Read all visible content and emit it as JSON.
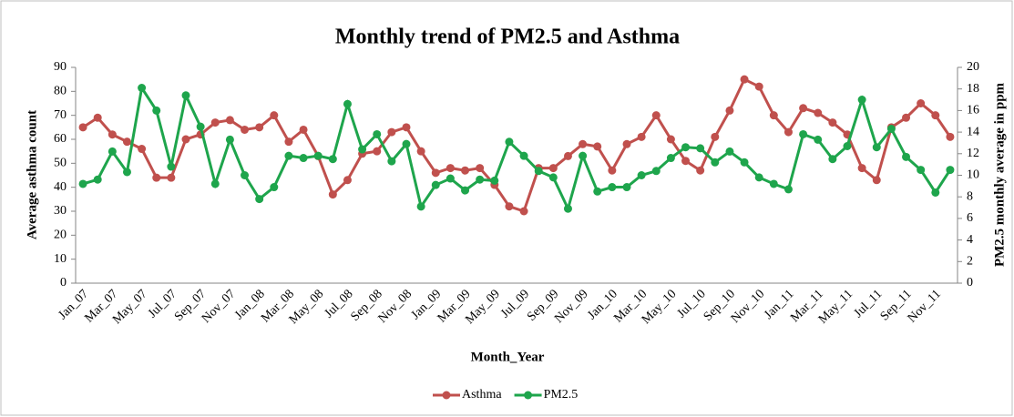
{
  "chart_data": {
    "type": "line",
    "title": "Monthly trend of PM2.5 and Asthma",
    "x_label": "Month_Year",
    "y_label": "Average asthma count",
    "y2_label": "PM2.5 monthly average in ppm",
    "categories": [
      "Jan_07",
      null,
      "Mar_07",
      null,
      "May_07",
      null,
      "Jul_07",
      null,
      "Sep_07",
      null,
      "Nov_07",
      null,
      "Jan_08",
      null,
      "Mar_08",
      null,
      "May_08",
      null,
      "Jul_08",
      null,
      "Sep_08",
      null,
      "Nov_08",
      null,
      "Jan_09",
      null,
      "Mar_09",
      null,
      "May_09",
      null,
      "Jul_09",
      null,
      "Sep_09",
      null,
      "Nov_09",
      null,
      "Jan_10",
      null,
      "Mar_10",
      null,
      "May_10",
      null,
      "Jul_10",
      null,
      "Sep_10",
      null,
      "Nov_10",
      null,
      "Jan_11",
      null,
      "Mar_11",
      null,
      "May_11",
      null,
      "Jul_11",
      null,
      "Sep_11",
      null,
      "Nov_11",
      null
    ],
    "series": [
      {
        "name": "Asthma",
        "color": "#c0504d",
        "values": [
          65,
          69,
          62,
          59,
          56,
          44,
          44,
          60,
          62,
          67,
          68,
          64,
          65,
          70,
          59,
          64,
          53,
          37,
          43,
          54,
          55,
          63,
          65,
          55,
          46,
          48,
          47,
          48,
          41,
          32,
          30,
          48,
          48,
          53,
          58,
          57,
          47,
          58,
          61,
          70,
          60,
          51,
          47,
          61,
          72,
          85,
          82,
          70,
          63,
          73,
          71,
          67,
          62,
          48,
          43,
          65,
          69,
          75,
          70,
          61
        ]
      },
      {
        "name": "PM2.5",
        "color": "#1ea54c",
        "axis": "y2",
        "values": [
          9.2,
          9.6,
          12.2,
          10.3,
          18.1,
          16.0,
          10.8,
          17.4,
          14.5,
          9.2,
          13.3,
          10.0,
          7.8,
          8.9,
          11.8,
          11.6,
          11.8,
          11.5,
          16.6,
          12.4,
          13.8,
          11.3,
          12.9,
          7.1,
          9.1,
          9.7,
          8.6,
          9.6,
          9.5,
          13.1,
          11.8,
          10.4,
          9.8,
          6.9,
          11.8,
          8.5,
          8.9,
          8.9,
          10.0,
          10.4,
          11.6,
          12.6,
          12.5,
          11.2,
          12.2,
          11.2,
          9.8,
          9.2,
          8.7,
          13.8,
          13.3,
          11.5,
          12.7,
          17.0,
          12.6,
          14.3,
          11.7,
          10.5,
          8.4,
          10.5
        ]
      }
    ],
    "ylim": [
      0,
      90
    ],
    "yticks": [
      0,
      10,
      20,
      30,
      40,
      50,
      60,
      70,
      80,
      90
    ],
    "y2lim": [
      0,
      20
    ],
    "y2ticks": [
      0,
      2,
      4,
      6,
      8,
      10,
      12,
      14,
      16,
      18,
      20
    ],
    "grid": false,
    "legend": "bottom"
  }
}
